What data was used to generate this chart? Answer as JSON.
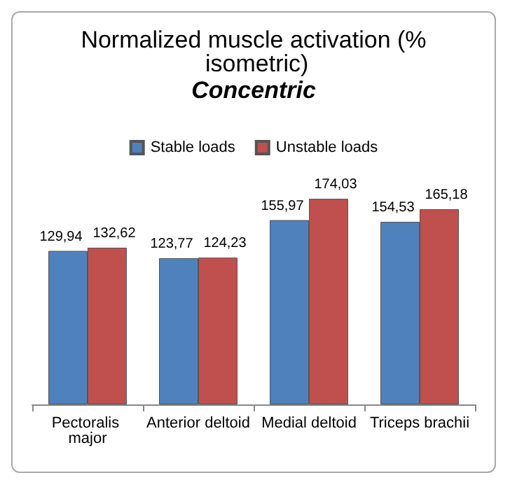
{
  "chart_data": {
    "type": "bar",
    "title": "Normalized muscle activation (% isometric)",
    "subtitle": "Concentric",
    "categories": [
      "Pectoralis major",
      "Anterior deltoid",
      "Medial deltoid",
      "Triceps brachii"
    ],
    "series": [
      {
        "name": "Stable loads",
        "color": "#4f81bd",
        "values": [
          129.94,
          123.77,
          155.97,
          154.53
        ],
        "value_labels": [
          "129,94",
          "123,77",
          "155,97",
          "154,53"
        ]
      },
      {
        "name": "Unstable loads",
        "color": "#c0504d",
        "values": [
          132.62,
          124.23,
          174.03,
          165.18
        ],
        "value_labels": [
          "132,62",
          "124,23",
          "174,03",
          "165,18"
        ]
      }
    ],
    "legend": "top"
  }
}
